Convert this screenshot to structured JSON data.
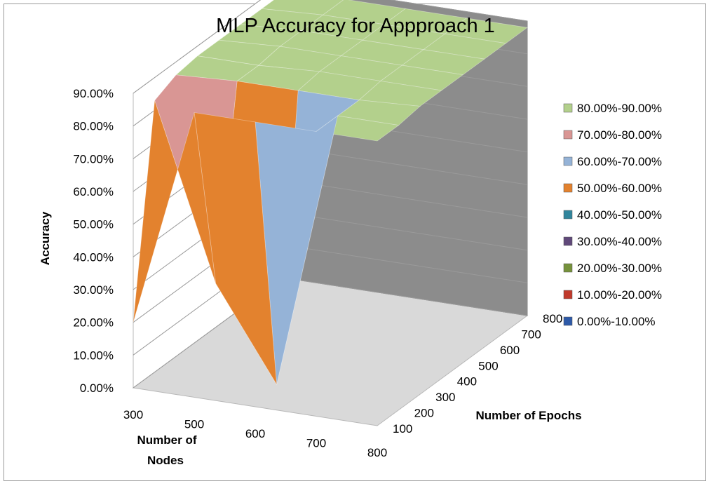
{
  "chart_data": {
    "type": "surface",
    "title": "MLP Accuracy for Appproach 1",
    "xlabel_lines": [
      "Number of",
      "Nodes"
    ],
    "ylabel": "Number of Epochs",
    "zlabel": "Accuracy",
    "x_categories": [
      "300",
      "500",
      "600",
      "700",
      "800"
    ],
    "y_categories": [
      "100",
      "200",
      "300",
      "400",
      "500",
      "600",
      "700",
      "800"
    ],
    "z_ticks": [
      "0.00%",
      "10.00%",
      "20.00%",
      "30.00%",
      "40.00%",
      "50.00%",
      "60.00%",
      "70.00%",
      "80.00%",
      "90.00%"
    ],
    "zlim": [
      0,
      90
    ],
    "values": [
      [
        20,
        83,
        86,
        87,
        87,
        87,
        87,
        87
      ],
      [
        87,
        30,
        87,
        87,
        88,
        88,
        88,
        88
      ],
      [
        87,
        2,
        87,
        88,
        88,
        88,
        88,
        88
      ],
      [
        87,
        87,
        87,
        88,
        88,
        88,
        88,
        88
      ],
      [
        87,
        87,
        88,
        88,
        88,
        88,
        88,
        88
      ]
    ],
    "legend": [
      {
        "label": "80.00%-90.00%",
        "color": "#b3d08c"
      },
      {
        "label": "70.00%-80.00%",
        "color": "#d99694"
      },
      {
        "label": "60.00%-70.00%",
        "color": "#95b3d7"
      },
      {
        "label": "50.00%-60.00%",
        "color": "#e3822e"
      },
      {
        "label": "40.00%-50.00%",
        "color": "#31859c"
      },
      {
        "label": "30.00%-40.00%",
        "color": "#60497a"
      },
      {
        "label": "20.00%-30.00%",
        "color": "#76923c"
      },
      {
        "label": "10.00%-20.00%",
        "color": "#c0392b"
      },
      {
        "label": "0.00%-10.00%",
        "color": "#2e5aa8"
      }
    ],
    "legend_position": "right",
    "walls": {
      "back": "#8c8c8c",
      "floor": "#d9d9d9",
      "side": "#ffffff"
    },
    "gridlines": true
  }
}
